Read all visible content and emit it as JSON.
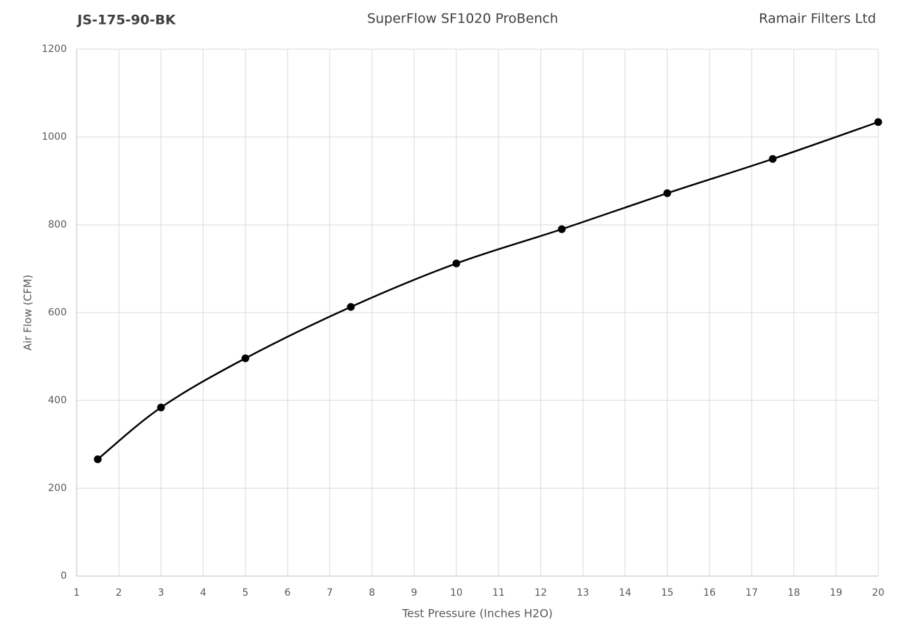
{
  "chart_data": {
    "type": "line",
    "title": "SuperFlow SF1020 ProBench",
    "annotations": [
      "JS-175-90-BK",
      "Ramair Filters Ltd"
    ],
    "x_label": "Test Pressure (Inches H2O)",
    "y_label": "Air Flow (CFM)",
    "x": [
      1.5,
      3,
      5,
      7.5,
      10,
      12.5,
      15,
      17.5,
      20
    ],
    "series": [
      {
        "name": "Air Flow (CFM)",
        "color": "#000000",
        "values": [
          266,
          384,
          496,
          613,
          712,
          790,
          872,
          950,
          1034
        ]
      }
    ],
    "xlim": [
      1,
      20
    ],
    "xticks": [
      1,
      2,
      3,
      4,
      5,
      6,
      7,
      8,
      9,
      10,
      11,
      12,
      13,
      14,
      15,
      16,
      17,
      18,
      19,
      20
    ],
    "ylim": [
      0,
      1200
    ],
    "yticks": [
      0,
      200,
      400,
      600,
      800,
      1000,
      1200
    ],
    "grid": true,
    "smooth": true,
    "markers": true
  }
}
